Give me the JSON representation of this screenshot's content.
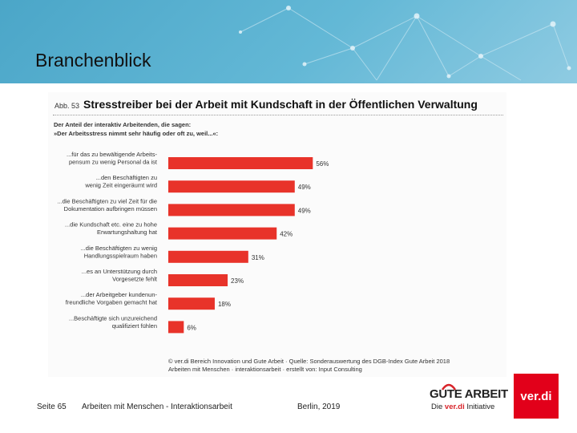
{
  "slide": {
    "section_title": "Branchenblick",
    "figure_label": "Abb. 53",
    "chart_title": "Stresstreiber bei der Arbeit mit Kundschaft in der Öffentlichen Verwaltung",
    "intro_line1": "Der Anteil der interaktiv Arbeitenden, die sagen:",
    "intro_line2": "»Der Arbeitsstress nimmt sehr häufig oder oft zu, weil...«:",
    "source_line1": "© ver.di Bereich Innovation und Gute Arbeit · Quelle: Sonderauswertung des DGB-Index Gute Arbeit 2018",
    "source_line2": "Arbeiten mit Menschen · interaktionsarbeit · erstellt von: Input Consulting"
  },
  "footer": {
    "page": "Seite 65",
    "topic": "Arbeiten mit Menschen - Interaktionsarbeit",
    "place_date": "Berlin, 2019"
  },
  "logos": {
    "gute_arbeit": "GUTE ARBEIT",
    "initiative_prefix": "Die",
    "initiative_brand": "ver.di",
    "initiative_suffix": "Initiative",
    "verdi": "ver.di"
  },
  "colors": {
    "bar": "#e8332a",
    "header": "#5db3d2",
    "verdi_red": "#e2001a"
  },
  "chart_data": {
    "type": "bar",
    "orientation": "horizontal",
    "categories": [
      [
        "...für das zu bewältigende Arbeits-",
        "pensum zu wenig Personal da ist"
      ],
      [
        "...den Beschäftigten zu",
        "wenig Zeit eingeräumt wird"
      ],
      [
        "...die Beschäftigten zu viel Zeit für die",
        "Dokumentation aufbringen müssen"
      ],
      [
        "...die Kundschaft etc. eine zu hohe",
        "Erwartungshaltung hat"
      ],
      [
        "...die Beschäftigten zu wenig",
        "Handlungsspielraum haben"
      ],
      [
        "...es an Unterstützung durch",
        "Vorgesetzte fehlt"
      ],
      [
        "...der Arbeitgeber kundenun-",
        "freundliche Vorgaben gemacht hat"
      ],
      [
        "...Beschäftigte sich unzureichend",
        "qualifiziert fühlen"
      ]
    ],
    "values": [
      56,
      49,
      49,
      42,
      31,
      23,
      18,
      6
    ],
    "value_labels": [
      "56%",
      "49%",
      "49%",
      "42%",
      "31%",
      "23%",
      "18%",
      "6%"
    ],
    "xlim": [
      0,
      100
    ],
    "grid": false,
    "legend": "none"
  }
}
